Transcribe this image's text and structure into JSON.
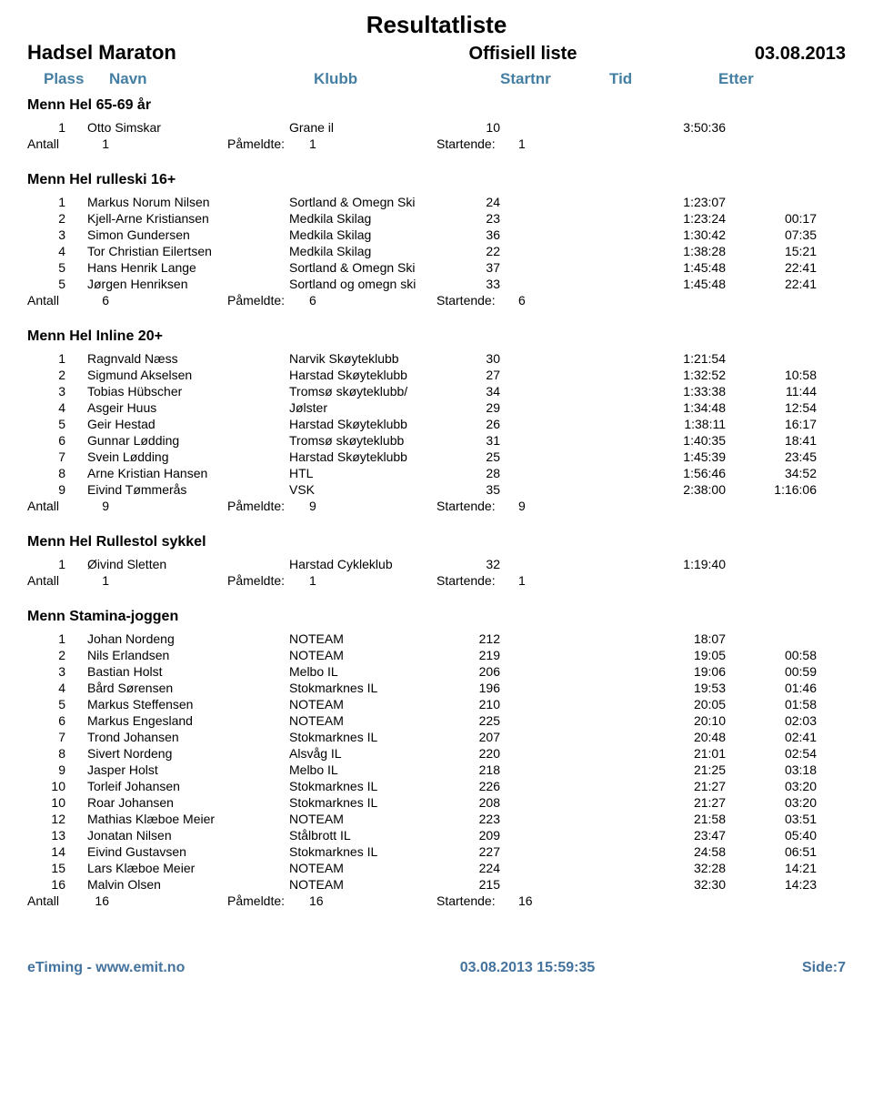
{
  "header": {
    "main_title": "Resultatliste",
    "event_name": "Hadsel Maraton",
    "subtitle": "Offisiell liste",
    "date": "03.08.2013"
  },
  "columns": {
    "plass": "Plass",
    "navn": "Navn",
    "klubb": "Klubb",
    "startnr": "Startnr",
    "tid": "Tid",
    "etter": "Etter"
  },
  "summary_labels": {
    "antall": "Antall",
    "pameldte": "Påmeldte:",
    "startende": "Startende:"
  },
  "colors": {
    "header_text": "#447fa3",
    "footer_text": "#44739e",
    "body_text": "#000000",
    "background": "#ffffff"
  },
  "groups": [
    {
      "title": "Menn Hel 65-69 år",
      "rows": [
        {
          "plass": "1",
          "navn": "Otto Simskar",
          "klubb": "Grane il",
          "startnr": "10",
          "tid": "3:50:36",
          "etter": ""
        }
      ],
      "summary": {
        "antall": "1",
        "pameldte": "1",
        "startende": "1"
      }
    },
    {
      "title": "Menn Hel rulleski 16+",
      "rows": [
        {
          "plass": "1",
          "navn": "Markus Norum Nilsen",
          "klubb": "Sortland & Omegn Ski",
          "startnr": "24",
          "tid": "1:23:07",
          "etter": ""
        },
        {
          "plass": "2",
          "navn": "Kjell-Arne Kristiansen",
          "klubb": "Medkila Skilag",
          "startnr": "23",
          "tid": "1:23:24",
          "etter": "00:17"
        },
        {
          "plass": "3",
          "navn": "Simon Gundersen",
          "klubb": "Medkila Skilag",
          "startnr": "36",
          "tid": "1:30:42",
          "etter": "07:35"
        },
        {
          "plass": "4",
          "navn": "Tor Christian Eilertsen",
          "klubb": "Medkila Skilag",
          "startnr": "22",
          "tid": "1:38:28",
          "etter": "15:21"
        },
        {
          "plass": "5",
          "navn": "Hans Henrik Lange",
          "klubb": "Sortland & Omegn Ski",
          "startnr": "37",
          "tid": "1:45:48",
          "etter": "22:41"
        },
        {
          "plass": "5",
          "navn": "Jørgen Henriksen",
          "klubb": "Sortland og omegn ski",
          "startnr": "33",
          "tid": "1:45:48",
          "etter": "22:41"
        }
      ],
      "summary": {
        "antall": "6",
        "pameldte": "6",
        "startende": "6"
      }
    },
    {
      "title": "Menn Hel Inline 20+",
      "rows": [
        {
          "plass": "1",
          "navn": "Ragnvald Næss",
          "klubb": "Narvik Skøyteklubb",
          "startnr": "30",
          "tid": "1:21:54",
          "etter": ""
        },
        {
          "plass": "2",
          "navn": "Sigmund Akselsen",
          "klubb": "Harstad Skøyteklubb",
          "startnr": "27",
          "tid": "1:32:52",
          "etter": "10:58"
        },
        {
          "plass": "3",
          "navn": "Tobias Hübscher",
          "klubb": "Tromsø skøyteklubb/",
          "startnr": "34",
          "tid": "1:33:38",
          "etter": "11:44"
        },
        {
          "plass": "4",
          "navn": "Asgeir Huus",
          "klubb": "Jølster",
          "startnr": "29",
          "tid": "1:34:48",
          "etter": "12:54"
        },
        {
          "plass": "5",
          "navn": "Geir Hestad",
          "klubb": "Harstad Skøyteklubb",
          "startnr": "26",
          "tid": "1:38:11",
          "etter": "16:17"
        },
        {
          "plass": "6",
          "navn": "Gunnar Lødding",
          "klubb": "Tromsø skøyteklubb",
          "startnr": "31",
          "tid": "1:40:35",
          "etter": "18:41"
        },
        {
          "plass": "7",
          "navn": "Svein Lødding",
          "klubb": "Harstad Skøyteklubb",
          "startnr": "25",
          "tid": "1:45:39",
          "etter": "23:45"
        },
        {
          "plass": "8",
          "navn": "Arne Kristian Hansen",
          "klubb": "HTL",
          "startnr": "28",
          "tid": "1:56:46",
          "etter": "34:52"
        },
        {
          "plass": "9",
          "navn": "Eivind Tømmerås",
          "klubb": "VSK",
          "startnr": "35",
          "tid": "2:38:00",
          "etter": "1:16:06"
        }
      ],
      "summary": {
        "antall": "9",
        "pameldte": "9",
        "startende": "9"
      }
    },
    {
      "title": "Menn Hel Rullestol sykkel",
      "rows": [
        {
          "plass": "1",
          "navn": "Øivind Sletten",
          "klubb": "Harstad Cykleklub",
          "startnr": "32",
          "tid": "1:19:40",
          "etter": ""
        }
      ],
      "summary": {
        "antall": "1",
        "pameldte": "1",
        "startende": "1"
      }
    },
    {
      "title": "Menn Stamina-joggen",
      "rows": [
        {
          "plass": "1",
          "navn": "Johan Nordeng",
          "klubb": "NOTEAM",
          "startnr": "212",
          "tid": "18:07",
          "etter": ""
        },
        {
          "plass": "2",
          "navn": "Nils Erlandsen",
          "klubb": "NOTEAM",
          "startnr": "219",
          "tid": "19:05",
          "etter": "00:58"
        },
        {
          "plass": "3",
          "navn": "Bastian Holst",
          "klubb": "Melbo IL",
          "startnr": "206",
          "tid": "19:06",
          "etter": "00:59"
        },
        {
          "plass": "4",
          "navn": "Bård Sørensen",
          "klubb": "Stokmarknes IL",
          "startnr": "196",
          "tid": "19:53",
          "etter": "01:46"
        },
        {
          "plass": "5",
          "navn": "Markus Steffensen",
          "klubb": "NOTEAM",
          "startnr": "210",
          "tid": "20:05",
          "etter": "01:58"
        },
        {
          "plass": "6",
          "navn": "Markus Engesland",
          "klubb": "NOTEAM",
          "startnr": "225",
          "tid": "20:10",
          "etter": "02:03"
        },
        {
          "plass": "7",
          "navn": "Trond Johansen",
          "klubb": "Stokmarknes IL",
          "startnr": "207",
          "tid": "20:48",
          "etter": "02:41"
        },
        {
          "plass": "8",
          "navn": "Sivert Nordeng",
          "klubb": "Alsvåg IL",
          "startnr": "220",
          "tid": "21:01",
          "etter": "02:54"
        },
        {
          "plass": "9",
          "navn": "Jasper Holst",
          "klubb": "Melbo IL",
          "startnr": "218",
          "tid": "21:25",
          "etter": "03:18"
        },
        {
          "plass": "10",
          "navn": "Torleif Johansen",
          "klubb": "Stokmarknes IL",
          "startnr": "226",
          "tid": "21:27",
          "etter": "03:20"
        },
        {
          "plass": "10",
          "navn": "Roar Johansen",
          "klubb": "Stokmarknes IL",
          "startnr": "208",
          "tid": "21:27",
          "etter": "03:20"
        },
        {
          "plass": "12",
          "navn": "Mathias Klæboe Meier",
          "klubb": "NOTEAM",
          "startnr": "223",
          "tid": "21:58",
          "etter": "03:51"
        },
        {
          "plass": "13",
          "navn": "Jonatan Nilsen",
          "klubb": "Stålbrott IL",
          "startnr": "209",
          "tid": "23:47",
          "etter": "05:40"
        },
        {
          "plass": "14",
          "navn": "Eivind Gustavsen",
          "klubb": "Stokmarknes IL",
          "startnr": "227",
          "tid": "24:58",
          "etter": "06:51"
        },
        {
          "plass": "15",
          "navn": "Lars Klæboe Meier",
          "klubb": "NOTEAM",
          "startnr": "224",
          "tid": "32:28",
          "etter": "14:21"
        },
        {
          "plass": "16",
          "navn": "Malvin Olsen",
          "klubb": "NOTEAM",
          "startnr": "215",
          "tid": "32:30",
          "etter": "14:23"
        }
      ],
      "summary": {
        "antall": "16",
        "pameldte": "16",
        "startende": "16"
      }
    }
  ],
  "footer": {
    "left": "eTiming - www.emit.no",
    "mid": "03.08.2013 15:59:35",
    "right": "Side:7"
  }
}
